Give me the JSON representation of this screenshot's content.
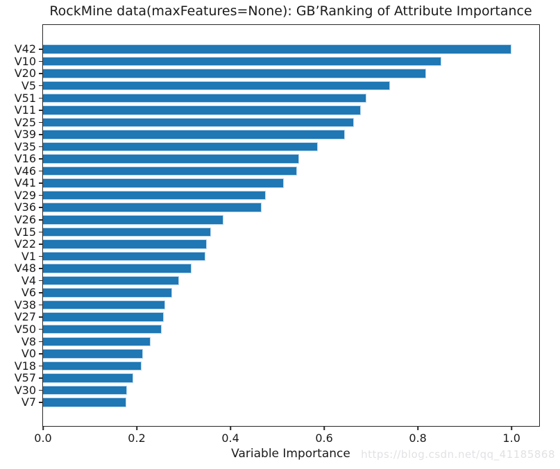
{
  "chart_data": {
    "type": "bar",
    "orientation": "horizontal",
    "title": "RockMine data(maxFeatures=None): GB’Ranking of Attribute Importance",
    "xlabel": "Variable Importance",
    "ylabel": "",
    "categories": [
      "V42",
      "V10",
      "V20",
      "V5",
      "V51",
      "V11",
      "V25",
      "V39",
      "V35",
      "V16",
      "V46",
      "V41",
      "V29",
      "V36",
      "V26",
      "V15",
      "V22",
      "V1",
      "V48",
      "V4",
      "V6",
      "V38",
      "V27",
      "V50",
      "V8",
      "V0",
      "V18",
      "V57",
      "V30",
      "V7"
    ],
    "values": [
      1.0,
      0.85,
      0.818,
      0.741,
      0.69,
      0.678,
      0.663,
      0.644,
      0.586,
      0.546,
      0.542,
      0.514,
      0.476,
      0.466,
      0.385,
      0.359,
      0.35,
      0.347,
      0.317,
      0.29,
      0.275,
      0.261,
      0.258,
      0.253,
      0.23,
      0.213,
      0.211,
      0.193,
      0.179,
      0.178
    ],
    "xticks": [
      "0.0",
      "0.2",
      "0.4",
      "0.6",
      "0.8",
      "1.0"
    ],
    "xlim": [
      0.0,
      1.059
    ],
    "grid": false,
    "legend": null,
    "bar_color": "#1f77b4",
    "bar_edge_color": "#b5d4ec"
  },
  "watermark": {
    "text": "https://blog.csdn.net/qq_41185868"
  }
}
